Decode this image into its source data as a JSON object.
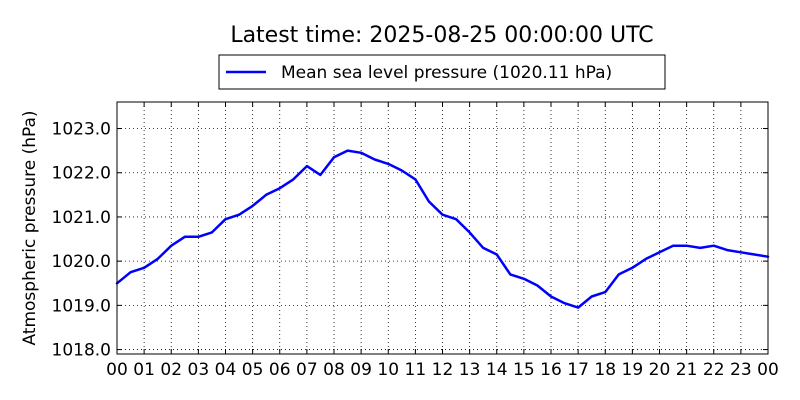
{
  "chart_data": {
    "type": "line",
    "title": "Latest time: 2025-08-25 00:00:00 UTC",
    "xlabel": "",
    "ylabel": "Atmospheric pressure (hPa)",
    "ylim": [
      1017.9,
      1023.6
    ],
    "xlim": [
      0,
      24
    ],
    "grid": true,
    "legend_position": "top-center",
    "x_tick_labels": [
      "00",
      "01",
      "02",
      "03",
      "04",
      "05",
      "06",
      "07",
      "08",
      "09",
      "10",
      "11",
      "12",
      "13",
      "14",
      "15",
      "16",
      "17",
      "18",
      "19",
      "20",
      "21",
      "22",
      "23",
      "00"
    ],
    "y_ticks": [
      1018.0,
      1019.0,
      1020.0,
      1021.0,
      1022.0,
      1023.0
    ],
    "y_tick_labels": [
      "1018.0",
      "1019.0",
      "1020.0",
      "1021.0",
      "1022.0",
      "1023.0"
    ],
    "series": [
      {
        "name": "Mean sea level pressure (1020.11 hPa)",
        "color": "#0000ff",
        "x": [
          0,
          0.5,
          1,
          1.5,
          2,
          2.5,
          3,
          3.5,
          4,
          4.5,
          5,
          5.5,
          6,
          6.5,
          7,
          7.5,
          8,
          8.5,
          9,
          9.5,
          10,
          10.5,
          11,
          11.5,
          12,
          12.5,
          13,
          13.5,
          14,
          14.5,
          15,
          15.5,
          16,
          16.5,
          17,
          17.5,
          18,
          18.5,
          19,
          19.5,
          20,
          20.5,
          21,
          21.5,
          22,
          22.5,
          23,
          23.5,
          24
        ],
        "values": [
          1019.5,
          1019.75,
          1019.85,
          1020.05,
          1020.35,
          1020.55,
          1020.55,
          1020.65,
          1020.95,
          1021.05,
          1021.25,
          1021.5,
          1021.65,
          1021.85,
          1022.15,
          1021.95,
          1022.35,
          1022.5,
          1022.45,
          1022.3,
          1022.2,
          1022.05,
          1021.85,
          1021.35,
          1021.05,
          1020.95,
          1020.65,
          1020.3,
          1020.15,
          1019.7,
          1019.6,
          1019.45,
          1019.2,
          1019.05,
          1018.95,
          1019.2,
          1019.3,
          1019.7,
          1019.85,
          1020.05,
          1020.2,
          1020.35,
          1020.35,
          1020.3,
          1020.35,
          1020.25,
          1020.2,
          1020.15,
          1020.1
        ]
      }
    ]
  }
}
